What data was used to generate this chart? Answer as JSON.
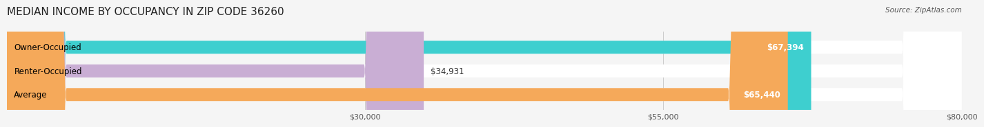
{
  "title": "MEDIAN INCOME BY OCCUPANCY IN ZIP CODE 36260",
  "source": "Source: ZipAtlas.com",
  "categories": [
    "Owner-Occupied",
    "Renter-Occupied",
    "Average"
  ],
  "values": [
    67394,
    34931,
    65440
  ],
  "bar_colors": [
    "#3ecfcf",
    "#c9aed4",
    "#f5a95a"
  ],
  "value_labels": [
    "$67,394",
    "$34,931",
    "$65,440"
  ],
  "xlim": [
    0,
    80000
  ],
  "xticks": [
    30000,
    55000,
    80000
  ],
  "xtick_labels": [
    "$30,000",
    "$55,000",
    "$80,000"
  ],
  "title_fontsize": 11,
  "label_fontsize": 8.5,
  "tick_fontsize": 8,
  "bar_height": 0.55,
  "background_color": "#f5f5f5"
}
